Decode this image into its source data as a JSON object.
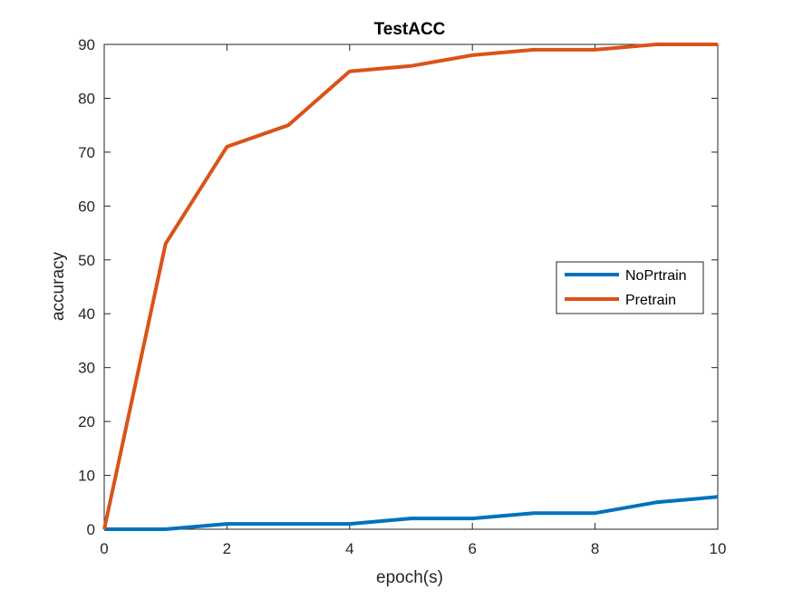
{
  "chart_data": {
    "type": "line",
    "title": "TestACC",
    "xlabel": "epoch(s)",
    "ylabel": "accuracy",
    "xlim": [
      0,
      10
    ],
    "ylim": [
      0,
      90
    ],
    "xticks": [
      0,
      2,
      4,
      6,
      8,
      10
    ],
    "yticks": [
      0,
      10,
      20,
      30,
      40,
      50,
      60,
      70,
      80,
      90
    ],
    "grid": false,
    "legend_position": "right",
    "x": [
      0,
      1,
      2,
      3,
      4,
      5,
      6,
      7,
      8,
      9,
      10
    ],
    "series": [
      {
        "name": "NoPrtrain",
        "color": "#0072BD",
        "values": [
          0,
          0,
          1,
          1,
          1,
          2,
          2,
          3,
          3,
          5,
          6
        ]
      },
      {
        "name": "Pretrain",
        "color": "#D95319",
        "values": [
          0,
          53,
          71,
          75,
          85,
          86,
          88,
          89,
          89,
          90,
          90
        ]
      }
    ]
  }
}
